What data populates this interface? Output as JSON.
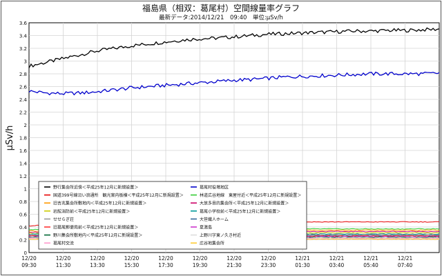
{
  "chart_data": {
    "type": "line",
    "title": "福島県（相双：葛尾村）空間線量率グラフ",
    "subtitle": "最新データ:2014/12/21　09:40　単位:μSv/h",
    "ylabel": "μSv/h",
    "xlabel": "",
    "ylim": [
      0,
      3.6
    ],
    "yticks": [
      0,
      0.2,
      0.4,
      0.6,
      0.8,
      1.0,
      1.2,
      1.4,
      1.6,
      1.8,
      2.0,
      2.2,
      2.4,
      2.6,
      2.8,
      3.0,
      3.2,
      3.4,
      3.6
    ],
    "ytick_labels": [
      "0",
      "0.2",
      "0.4",
      "0.6",
      "0.8",
      "1",
      "1.2",
      "1.4",
      "1.6",
      "1.8",
      "2",
      "2.2",
      "2.4",
      "2.6",
      "2.8",
      "3",
      "3.2",
      "3.4",
      "3.6"
    ],
    "xticks": [
      {
        "date": "12/20",
        "time": "09:30"
      },
      {
        "date": "12/20",
        "time": "11:30"
      },
      {
        "date": "12/20",
        "time": "13:30"
      },
      {
        "date": "12/20",
        "time": "15:30"
      },
      {
        "date": "12/20",
        "time": "17:30"
      },
      {
        "date": "12/20",
        "time": "19:30"
      },
      {
        "date": "12/20",
        "time": "21:30"
      },
      {
        "date": "12/20",
        "time": "23:30"
      },
      {
        "date": "12/21",
        "time": "01:30"
      },
      {
        "date": "12/21",
        "time": "03:40"
      },
      {
        "date": "12/21",
        "time": "05:40"
      },
      {
        "date": "12/21",
        "time": "07:40"
      }
    ],
    "grid": true,
    "legend_position": "bottom-left",
    "series": [
      {
        "name": "野行集会所近傍＜平成25年12月に新規設置＞",
        "color": "#000000",
        "values": [
          2.92,
          2.98,
          3.04,
          3.1,
          3.16,
          3.2,
          3.24,
          3.27,
          3.3,
          3.33,
          3.35,
          3.36,
          3.38,
          3.4,
          3.42,
          3.43,
          3.44,
          3.45,
          3.46,
          3.47,
          3.47,
          3.48,
          3.48,
          3.49,
          3.5
        ]
      },
      {
        "name": "葛尾村役場地区",
        "color": "#0000cc",
        "values": [
          2.53,
          2.5,
          2.49,
          2.5,
          2.52,
          2.55,
          2.58,
          2.6,
          2.62,
          2.64,
          2.66,
          2.68,
          2.7,
          2.71,
          2.73,
          2.75,
          2.76,
          2.77,
          2.78,
          2.79,
          2.8,
          2.8,
          2.8,
          2.8,
          2.81
        ]
      },
      {
        "name": "国道399号線沿い浪通所　観光案内板横＜平成25年12月に新規設置＞",
        "color": "#e60000",
        "values": [
          0.42,
          0.43,
          0.44,
          0.45,
          0.45,
          0.46,
          0.46,
          0.47,
          0.47,
          0.47,
          0.48,
          0.48,
          0.48,
          0.48,
          0.48,
          0.48,
          0.48,
          0.48,
          0.48,
          0.48,
          0.48,
          0.48,
          0.48,
          0.48,
          0.48
        ]
      },
      {
        "name": "林道広谷地線　東屋付近＜平成25年12月に新規設置＞",
        "color": "#33cc33",
        "values": [
          0.36,
          0.36,
          0.36,
          0.36,
          0.37,
          0.37,
          0.37,
          0.37,
          0.37,
          0.37,
          0.37,
          0.37,
          0.37,
          0.37,
          0.37,
          0.37,
          0.37,
          0.37,
          0.37,
          0.37,
          0.37,
          0.37,
          0.37,
          0.37,
          0.37
        ]
      },
      {
        "name": "旧吉兆集会所敷地内＜平成25年12月に新規設置＞",
        "color": "#ff9900",
        "values": [
          0.34,
          0.34,
          0.34,
          0.35,
          0.35,
          0.35,
          0.35,
          0.35,
          0.35,
          0.35,
          0.35,
          0.35,
          0.35,
          0.35,
          0.35,
          0.35,
          0.35,
          0.35,
          0.35,
          0.35,
          0.35,
          0.35,
          0.35,
          0.35,
          0.35
        ]
      },
      {
        "name": "大放多目的集会所＜平成25年12月に新規設置＞",
        "color": "#cc0066",
        "values": [
          0.32,
          0.32,
          0.32,
          0.33,
          0.33,
          0.33,
          0.33,
          0.33,
          0.33,
          0.33,
          0.33,
          0.33,
          0.33,
          0.33,
          0.33,
          0.33,
          0.33,
          0.33,
          0.33,
          0.33,
          0.33,
          0.33,
          0.33,
          0.33,
          0.33
        ]
      },
      {
        "name": "岩館消防前＜平成25年12月に新規設置＞",
        "color": "#cccc00",
        "values": [
          0.3,
          0.3,
          0.3,
          0.31,
          0.31,
          0.31,
          0.31,
          0.31,
          0.31,
          0.31,
          0.31,
          0.31,
          0.31,
          0.31,
          0.31,
          0.31,
          0.31,
          0.31,
          0.31,
          0.31,
          0.31,
          0.31,
          0.31,
          0.31,
          0.31
        ]
      },
      {
        "name": "葛尾小学校前＜平成25年12月に新規設置＞",
        "color": "#009999",
        "values": [
          0.29,
          0.29,
          0.29,
          0.29,
          0.29,
          0.29,
          0.29,
          0.29,
          0.29,
          0.29,
          0.29,
          0.29,
          0.29,
          0.29,
          0.29,
          0.29,
          0.29,
          0.29,
          0.29,
          0.29,
          0.29,
          0.29,
          0.29,
          0.29,
          0.29
        ]
      },
      {
        "name": "せせらぎ荘",
        "color": "#999999",
        "values": [
          0.28,
          0.28,
          0.28,
          0.28,
          0.28,
          0.28,
          0.28,
          0.28,
          0.28,
          0.28,
          0.28,
          0.28,
          0.28,
          0.28,
          0.28,
          0.28,
          0.28,
          0.28,
          0.28,
          0.28,
          0.28,
          0.28,
          0.28,
          0.28,
          0.28
        ]
      },
      {
        "name": "大笹織人ホーム",
        "color": "#336699",
        "values": [
          0.27,
          0.27,
          0.27,
          0.27,
          0.27,
          0.27,
          0.27,
          0.27,
          0.27,
          0.27,
          0.27,
          0.27,
          0.27,
          0.27,
          0.27,
          0.27,
          0.27,
          0.27,
          0.27,
          0.27,
          0.27,
          0.27,
          0.27,
          0.27,
          0.27
        ]
      },
      {
        "name": "旧葛尾郵便局前＜平成25年12月に新規設置＞",
        "color": "#ff3333",
        "values": [
          0.26,
          0.26,
          0.26,
          0.26,
          0.26,
          0.26,
          0.26,
          0.26,
          0.26,
          0.26,
          0.26,
          0.26,
          0.26,
          0.26,
          0.26,
          0.26,
          0.26,
          0.26,
          0.26,
          0.26,
          0.26,
          0.26,
          0.26,
          0.26,
          0.26
        ]
      },
      {
        "name": "夏湯島",
        "color": "#cc33cc",
        "values": [
          0.25,
          0.25,
          0.25,
          0.25,
          0.25,
          0.25,
          0.25,
          0.25,
          0.25,
          0.25,
          0.25,
          0.25,
          0.25,
          0.25,
          0.25,
          0.25,
          0.25,
          0.25,
          0.25,
          0.25,
          0.25,
          0.25,
          0.25,
          0.25,
          0.25
        ]
      },
      {
        "name": "野川集会所敷地内＜平成25年12月に新規設置＞",
        "color": "#006633",
        "values": [
          0.24,
          0.24,
          0.24,
          0.24,
          0.24,
          0.24,
          0.24,
          0.24,
          0.24,
          0.24,
          0.24,
          0.24,
          0.24,
          0.24,
          0.24,
          0.24,
          0.24,
          0.24,
          0.24,
          0.24,
          0.24,
          0.24,
          0.24,
          0.24,
          0.24
        ]
      },
      {
        "name": "上野川字東ノ久き村近",
        "color": "#dddddd",
        "values": [
          0.23,
          0.23,
          0.23,
          0.23,
          0.23,
          0.23,
          0.23,
          0.23,
          0.23,
          0.23,
          0.23,
          0.23,
          0.23,
          0.23,
          0.23,
          0.23,
          0.23,
          0.23,
          0.23,
          0.23,
          0.23,
          0.23,
          0.23,
          0.23,
          0.23
        ]
      },
      {
        "name": "葛尾村交流",
        "color": "#ff99cc",
        "values": [
          0.22,
          0.22,
          0.22,
          0.22,
          0.22,
          0.22,
          0.22,
          0.22,
          0.22,
          0.22,
          0.22,
          0.22,
          0.22,
          0.22,
          0.22,
          0.22,
          0.22,
          0.22,
          0.22,
          0.22,
          0.22,
          0.22,
          0.22,
          0.22,
          0.22
        ]
      },
      {
        "name": "広谷地集会所",
        "color": "#ffcc33",
        "values": [
          0.21,
          0.21,
          0.21,
          0.21,
          0.21,
          0.21,
          0.21,
          0.21,
          0.21,
          0.21,
          0.21,
          0.21,
          0.21,
          0.21,
          0.21,
          0.21,
          0.21,
          0.21,
          0.21,
          0.21,
          0.21,
          0.21,
          0.21,
          0.21,
          0.21
        ]
      }
    ]
  }
}
